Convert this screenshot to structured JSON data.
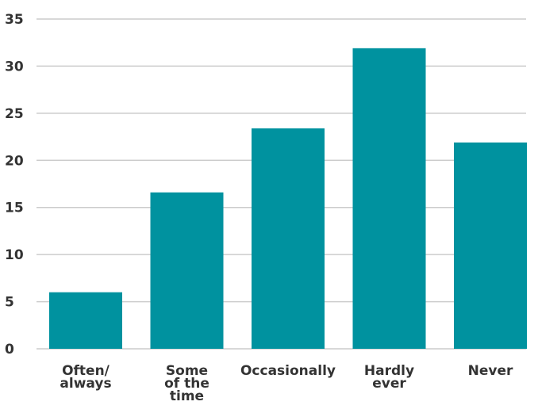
{
  "chart_data": {
    "type": "bar",
    "categories": [
      [
        "Often/",
        "always"
      ],
      [
        "Some",
        "of the",
        "time"
      ],
      [
        "Occasionally"
      ],
      [
        "Hardly",
        "ever"
      ],
      [
        "Never"
      ]
    ],
    "values": [
      6,
      16.6,
      23.4,
      31.9,
      21.9
    ],
    "ylim": [
      0,
      35
    ],
    "yticks": [
      "0",
      "5",
      "10",
      "15",
      "20",
      "25",
      "30",
      "35"
    ],
    "title": "",
    "xlabel": "",
    "ylabel": "",
    "grid": true,
    "bar_color": "#00929f",
    "grid_color": "#cccccc",
    "text_color": "#333333"
  }
}
